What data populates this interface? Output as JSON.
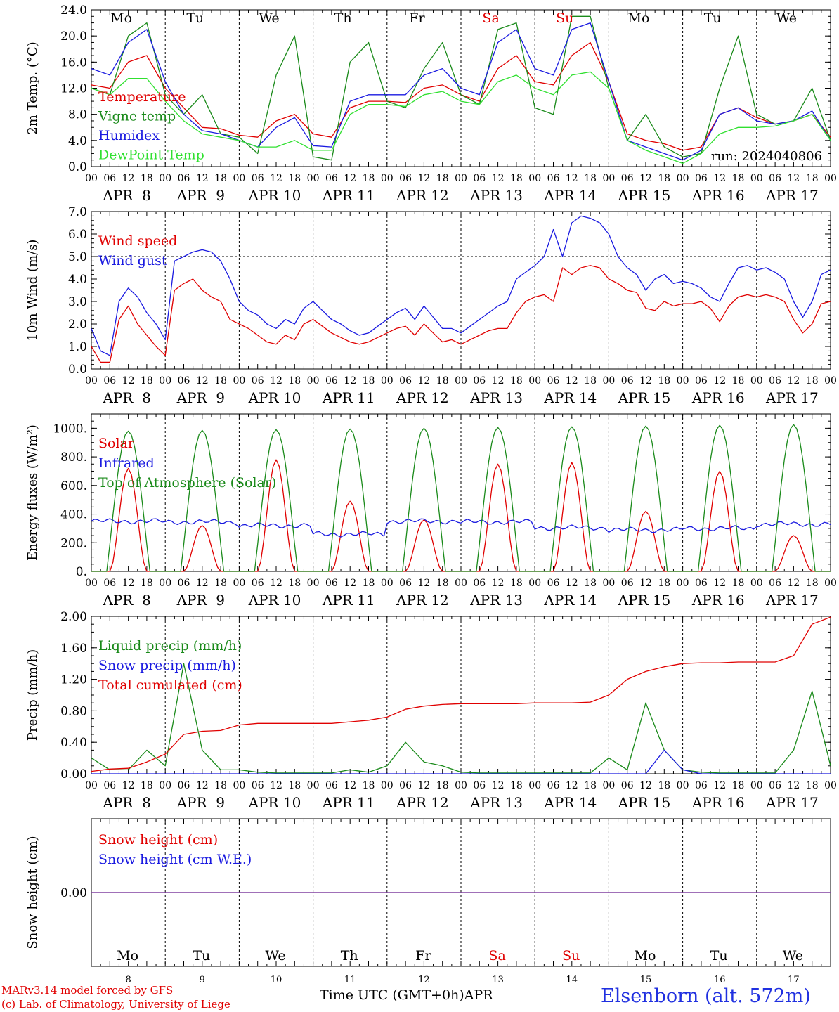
{
  "footer": {
    "credit_model": "MARv3.14 model forced by GFS",
    "credit_lab": "(c) Lab. of Climatology, University of Liege",
    "station": "Elsenborn (alt. 572m)",
    "x_axis_title": "Time UTC (GMT+0h)APR"
  },
  "colors": {
    "red": "#e00000",
    "green": "#1a8a1a",
    "blue": "#1a1ae0",
    "light_green": "#30e030",
    "purple": "#8040a0"
  },
  "day_names": [
    "Mo",
    "Tu",
    "We",
    "Th",
    "Fr",
    "Sa",
    "Su",
    "Mo",
    "Tu",
    "We"
  ],
  "weekend_days": [
    5,
    6
  ],
  "dates": [
    "APR  8",
    "APR  9",
    "APR 10",
    "APR 11",
    "APR 12",
    "APR 13",
    "APR 14",
    "APR 15",
    "APR 16",
    "APR 17"
  ],
  "day_numbers": [
    "8",
    "9",
    "10",
    "11",
    "12",
    "13",
    "14",
    "15",
    "16",
    "17"
  ],
  "hour_ticks": [
    "00",
    "06",
    "12",
    "18"
  ],
  "chart_data": [
    {
      "type": "line",
      "title": "",
      "ylabel": "2m Temp. (°C)",
      "ylim": [
        0,
        24
      ],
      "yticks": [
        "0.0",
        "4.0",
        "8.0",
        "12.0",
        "16.0",
        "20.0",
        "24.0"
      ],
      "annotation": "run: 2024040806",
      "show_day_names": true,
      "x_hours": [
        0,
        6,
        12,
        18,
        24,
        30,
        36,
        42,
        48,
        54,
        60,
        66,
        72,
        78,
        84,
        90,
        96,
        102,
        108,
        114,
        120,
        126,
        132,
        138,
        144,
        150,
        156,
        162,
        168,
        174,
        180,
        186,
        192,
        198,
        204,
        210,
        216,
        222,
        228,
        234,
        240
      ],
      "series": [
        {
          "name": "Temperature",
          "color": "red",
          "values": [
            12.5,
            12,
            16,
            17,
            12,
            9,
            6,
            5.8,
            4.8,
            4.5,
            7,
            8,
            5,
            4.5,
            9,
            10,
            10,
            9.8,
            12,
            12.5,
            11,
            10,
            15,
            17,
            13,
            12.5,
            17,
            19,
            13,
            5,
            4,
            3.5,
            2.5,
            3,
            8,
            9,
            7.5,
            6.5,
            7,
            8,
            4.5
          ]
        },
        {
          "name": "Vigne temp",
          "color": "green",
          "values": [
            12,
            11,
            20,
            22,
            11,
            8,
            11,
            5,
            4.5,
            2,
            14,
            20,
            1.5,
            1,
            16,
            19,
            10,
            9,
            15,
            19,
            11,
            9.5,
            21,
            22,
            9,
            8,
            23,
            23,
            12,
            4,
            8,
            3,
            1.5,
            2,
            12,
            20,
            8,
            6.5,
            7,
            12,
            4
          ]
        },
        {
          "name": "Humidex",
          "color": "blue",
          "values": [
            15,
            14,
            19,
            21,
            13,
            8,
            5.5,
            5,
            4,
            3,
            6,
            7.5,
            3.2,
            3,
            10,
            11,
            11,
            11,
            14,
            15,
            12,
            11,
            19,
            21,
            15,
            14,
            21,
            22,
            13,
            4,
            3,
            2,
            1,
            2.5,
            8,
            9,
            7,
            6.5,
            7,
            8.5,
            4
          ]
        },
        {
          "name": "DewPoint Temp",
          "color": "light_green",
          "values": [
            12,
            11,
            13.5,
            13.5,
            10,
            7,
            5,
            4.5,
            4,
            3,
            3,
            4,
            2.5,
            2.5,
            8,
            9.5,
            9.5,
            9.2,
            11,
            11.5,
            10,
            9.5,
            13,
            14,
            12,
            11,
            14,
            14.5,
            12,
            4,
            2.5,
            1.5,
            0.5,
            2,
            5,
            6,
            6,
            6.2,
            7,
            8,
            4
          ]
        }
      ]
    },
    {
      "type": "line",
      "title": "",
      "ylabel": "10m Wind (m/s)",
      "ylim": [
        0,
        7
      ],
      "yticks": [
        "0.0",
        "1.0",
        "2.0",
        "3.0",
        "4.0",
        "5.0",
        "6.0",
        "7.0"
      ],
      "reference_line": 5,
      "show_day_names": false,
      "x_hours": [
        0,
        3,
        6,
        9,
        12,
        15,
        18,
        21,
        24,
        27,
        30,
        33,
        36,
        39,
        42,
        45,
        48,
        51,
        54,
        57,
        60,
        63,
        66,
        69,
        72,
        75,
        78,
        81,
        84,
        87,
        90,
        93,
        96,
        99,
        102,
        105,
        108,
        111,
        114,
        117,
        120,
        123,
        126,
        129,
        132,
        135,
        138,
        141,
        144,
        147,
        150,
        153,
        156,
        159,
        162,
        165,
        168,
        171,
        174,
        177,
        180,
        183,
        186,
        189,
        192,
        195,
        198,
        201,
        204,
        207,
        210,
        213,
        216,
        219,
        222,
        225,
        228,
        231,
        234,
        237,
        240
      ],
      "series": [
        {
          "name": "Wind speed",
          "color": "red",
          "values": [
            1,
            0.3,
            0.3,
            2.2,
            2.8,
            2,
            1.5,
            1,
            0.6,
            3.5,
            3.8,
            4,
            3.5,
            3.2,
            3,
            2.2,
            2,
            1.8,
            1.5,
            1.2,
            1.1,
            1.5,
            1.3,
            2,
            2.2,
            1.9,
            1.6,
            1.4,
            1.2,
            1.1,
            1.2,
            1.4,
            1.6,
            1.8,
            1.9,
            1.5,
            2,
            1.6,
            1.2,
            1.3,
            1.1,
            1.3,
            1.5,
            1.7,
            1.8,
            1.8,
            2.5,
            3,
            3.2,
            3.3,
            3,
            4.5,
            4.2,
            4.5,
            4.6,
            4.5,
            4,
            3.8,
            3.5,
            3.4,
            2.7,
            2.6,
            3,
            2.8,
            2.9,
            2.9,
            3,
            2.7,
            2.1,
            2.8,
            3.2,
            3.3,
            3.2,
            3.3,
            3.2,
            3,
            2.2,
            1.6,
            2,
            2.9,
            3
          ]
        },
        {
          "name": "Wind gust",
          "color": "blue",
          "values": [
            1.8,
            0.8,
            0.6,
            3,
            3.6,
            3.2,
            2.5,
            2,
            1.3,
            4.8,
            5,
            5.2,
            5.3,
            5.2,
            4.8,
            4,
            3,
            2.6,
            2.4,
            2,
            1.8,
            2.2,
            2,
            2.7,
            3,
            2.6,
            2.2,
            2,
            1.7,
            1.5,
            1.6,
            1.9,
            2.2,
            2.5,
            2.7,
            2.2,
            2.8,
            2.3,
            1.8,
            1.8,
            1.6,
            1.9,
            2.2,
            2.5,
            2.8,
            3,
            4,
            4.3,
            4.6,
            5,
            6.2,
            5,
            6.5,
            6.8,
            6.7,
            6.5,
            6,
            5,
            4.5,
            4.2,
            3.5,
            4,
            4.2,
            3.8,
            3.9,
            3.8,
            3.6,
            3.2,
            3,
            3.8,
            4.5,
            4.6,
            4.4,
            4.5,
            4.3,
            4,
            3,
            2.3,
            3,
            4.2,
            4.4
          ]
        }
      ]
    },
    {
      "type": "line",
      "title": "",
      "ylabel": "Energy fluxes (W/m²)",
      "ylim": [
        0,
        1100
      ],
      "yticks": [
        "0.",
        "200.",
        "400.",
        "600.",
        "800.",
        "1000."
      ],
      "show_day_names": false,
      "series": [
        {
          "name": "Solar",
          "color": "red",
          "daily_peak": [
            720,
            320,
            780,
            490,
            360,
            750,
            760,
            420,
            700,
            250
          ]
        },
        {
          "name": "Infrared",
          "color": "blue",
          "daily_mean": [
            350,
            345,
            320,
            260,
            350,
            345,
            305,
            290,
            300,
            330
          ]
        },
        {
          "name": "Top of Atmosphere (Solar)",
          "color": "green",
          "daily_peak": [
            980,
            985,
            990,
            995,
            1000,
            1005,
            1010,
            1015,
            1020,
            1025
          ]
        }
      ]
    },
    {
      "type": "line",
      "title": "",
      "ylabel": "Precip (mm/h)",
      "ylim": [
        0,
        2
      ],
      "yticks": [
        "0.00",
        "0.40",
        "0.80",
        "1.20",
        "1.60",
        "2.00"
      ],
      "show_day_names": false,
      "x_hours": [
        0,
        6,
        12,
        18,
        24,
        30,
        36,
        42,
        48,
        54,
        60,
        66,
        72,
        78,
        84,
        90,
        96,
        102,
        108,
        114,
        120,
        126,
        132,
        138,
        144,
        150,
        156,
        162,
        168,
        174,
        180,
        186,
        192,
        198,
        204,
        210,
        216,
        222,
        228,
        234,
        240
      ],
      "series": [
        {
          "name": "Liquid precip (mm/h)",
          "color": "green",
          "values": [
            0.2,
            0.05,
            0.05,
            0.3,
            0.1,
            1.4,
            0.3,
            0.05,
            0.05,
            0.02,
            0.01,
            0.01,
            0.01,
            0.01,
            0.05,
            0.02,
            0.1,
            0.4,
            0.15,
            0.1,
            0.02,
            0.01,
            0.01,
            0.01,
            0.01,
            0.01,
            0.01,
            0.01,
            0.2,
            0.05,
            0.9,
            0.3,
            0.05,
            0.02,
            0.01,
            0.01,
            0.01,
            0.01,
            0.3,
            1.05,
            0.1
          ]
        },
        {
          "name": "Snow precip (mm/h)",
          "color": "blue",
          "values": [
            0,
            0,
            0,
            0,
            0,
            0,
            0,
            0,
            0,
            0,
            0,
            0,
            0,
            0,
            0,
            0,
            0,
            0,
            0,
            0,
            0,
            0,
            0,
            0,
            0,
            0,
            0,
            0,
            0,
            0,
            0,
            0.3,
            0.05,
            0,
            0,
            0,
            0,
            0,
            0,
            0,
            0
          ]
        },
        {
          "name": "Total cumulated (cm)",
          "color": "red",
          "values": [
            0.03,
            0.06,
            0.07,
            0.15,
            0.25,
            0.5,
            0.54,
            0.55,
            0.62,
            0.64,
            0.64,
            0.64,
            0.64,
            0.64,
            0.66,
            0.68,
            0.72,
            0.82,
            0.86,
            0.88,
            0.89,
            0.89,
            0.89,
            0.89,
            0.9,
            0.9,
            0.9,
            0.91,
            1,
            1.2,
            1.3,
            1.36,
            1.4,
            1.41,
            1.41,
            1.42,
            1.42,
            1.42,
            1.5,
            1.9,
            1.99
          ]
        }
      ]
    },
    {
      "type": "line",
      "title": "",
      "ylabel": "Snow height (cm)",
      "ylim": [
        -1,
        1
      ],
      "yticks": [
        "0.00"
      ],
      "show_day_names": true,
      "series": [
        {
          "name": "Snow height (cm)",
          "color": "red",
          "values": [
            0,
            0
          ]
        },
        {
          "name": "Snow height (cm W.E.)",
          "color": "blue",
          "values": [
            0,
            0
          ]
        }
      ]
    }
  ]
}
